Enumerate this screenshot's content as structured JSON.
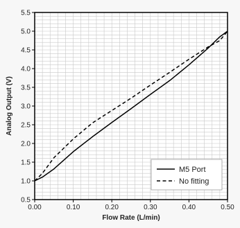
{
  "chart_data": {
    "type": "line",
    "xlabel": "Flow Rate (L/min)",
    "ylabel": "Analog Output (V)",
    "xlim": [
      0.0,
      0.5
    ],
    "ylim": [
      0.5,
      5.5
    ],
    "x_ticks": [
      "0.00",
      "0.10",
      "0.20",
      "0.30",
      "0.40",
      "0.50"
    ],
    "y_ticks": [
      "0.5",
      "1.0",
      "1.5",
      "2.0",
      "2.5",
      "3.0",
      "3.5",
      "4.0",
      "4.5",
      "5.0",
      "5.5"
    ],
    "grid": true,
    "legend_position": "bottom-right",
    "series": [
      {
        "name": "M5 Port",
        "style": "solid",
        "color": "#000000",
        "points": [
          [
            0.0,
            1.0
          ],
          [
            0.02,
            1.1
          ],
          [
            0.05,
            1.32
          ],
          [
            0.1,
            1.78
          ],
          [
            0.15,
            2.18
          ],
          [
            0.2,
            2.56
          ],
          [
            0.25,
            2.93
          ],
          [
            0.3,
            3.31
          ],
          [
            0.35,
            3.68
          ],
          [
            0.4,
            4.1
          ],
          [
            0.45,
            4.55
          ],
          [
            0.48,
            4.85
          ],
          [
            0.5,
            5.0
          ]
        ]
      },
      {
        "name": "No fitting",
        "style": "dashed",
        "color": "#000000",
        "points": [
          [
            0.0,
            1.0
          ],
          [
            0.02,
            1.2
          ],
          [
            0.05,
            1.62
          ],
          [
            0.1,
            2.12
          ],
          [
            0.15,
            2.55
          ],
          [
            0.2,
            2.88
          ],
          [
            0.25,
            3.21
          ],
          [
            0.3,
            3.56
          ],
          [
            0.35,
            3.9
          ],
          [
            0.4,
            4.25
          ],
          [
            0.45,
            4.58
          ],
          [
            0.48,
            4.75
          ],
          [
            0.5,
            5.0
          ]
        ]
      }
    ]
  }
}
